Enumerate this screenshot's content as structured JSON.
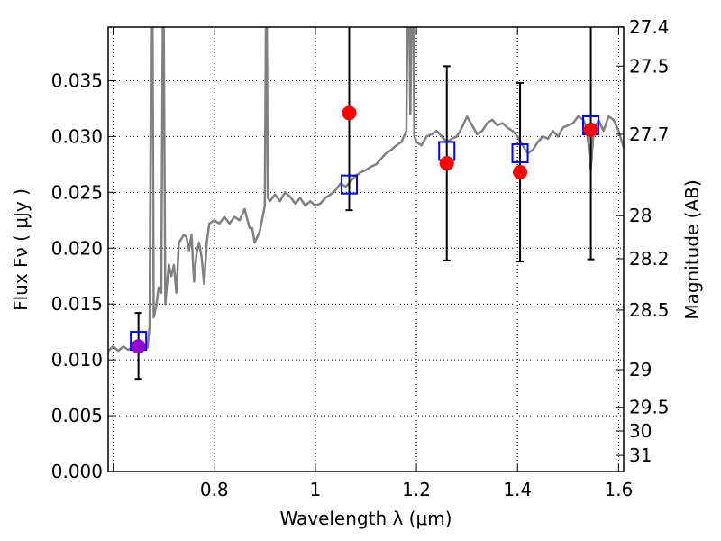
{
  "chart_data": {
    "type": "scatter",
    "xlabel": "Wavelength  λ (μm)",
    "ylabel_left": "Flux  Fν  ( μJy )",
    "ylabel_right": "Magnitude (AB)",
    "xlim": [
      0.59,
      1.61
    ],
    "ylim": [
      0.0,
      0.0398
    ],
    "grid": true,
    "x_ticks": [
      {
        "value": 0.6,
        "label": ""
      },
      {
        "value": 0.8,
        "label": "0.8"
      },
      {
        "value": 1.0,
        "label": "1"
      },
      {
        "value": 1.2,
        "label": "1.2"
      },
      {
        "value": 1.4,
        "label": "1.4"
      },
      {
        "value": 1.6,
        "label": "1.6"
      }
    ],
    "y_ticks": [
      {
        "value": 0.0,
        "label": "0.000"
      },
      {
        "value": 0.005,
        "label": "0.005"
      },
      {
        "value": 0.01,
        "label": "0.010"
      },
      {
        "value": 0.015,
        "label": "0.015"
      },
      {
        "value": 0.02,
        "label": "0.020"
      },
      {
        "value": 0.025,
        "label": "0.025"
      },
      {
        "value": 0.03,
        "label": "0.030"
      },
      {
        "value": 0.035,
        "label": "0.035"
      }
    ],
    "right_ticks": [
      {
        "mag": 27.4,
        "label": "27.4"
      },
      {
        "mag": 27.5,
        "label": "27.5"
      },
      {
        "mag": 27.7,
        "label": "27.7"
      },
      {
        "mag": 28.0,
        "label": "28"
      },
      {
        "mag": 28.2,
        "label": "28.2"
      },
      {
        "mag": 28.5,
        "label": "28.5"
      },
      {
        "mag": 29.0,
        "label": "29"
      },
      {
        "mag": 29.5,
        "label": "29.5"
      },
      {
        "mag": 30.0,
        "label": "30"
      },
      {
        "mag": 31.0,
        "label": "31"
      }
    ],
    "model_spectrum": {
      "color": "#808080",
      "points": [
        [
          0.59,
          0.0108
        ],
        [
          0.6,
          0.0112
        ],
        [
          0.61,
          0.0108
        ],
        [
          0.62,
          0.0112
        ],
        [
          0.63,
          0.0109
        ],
        [
          0.64,
          0.0112
        ],
        [
          0.65,
          0.011
        ],
        [
          0.66,
          0.0112
        ],
        [
          0.668,
          0.0111
        ],
        [
          0.672,
          0.013
        ],
        [
          0.675,
          0.0398
        ],
        [
          0.678,
          0.0398
        ],
        [
          0.68,
          0.0138
        ],
        [
          0.685,
          0.0148
        ],
        [
          0.69,
          0.0165
        ],
        [
          0.695,
          0.016
        ],
        [
          0.698,
          0.0398
        ],
        [
          0.7,
          0.0398
        ],
        [
          0.703,
          0.015
        ],
        [
          0.71,
          0.0185
        ],
        [
          0.715,
          0.0175
        ],
        [
          0.72,
          0.0185
        ],
        [
          0.725,
          0.016
        ],
        [
          0.73,
          0.0205
        ],
        [
          0.74,
          0.0212
        ],
        [
          0.745,
          0.021
        ],
        [
          0.75,
          0.0198
        ],
        [
          0.755,
          0.0212
        ],
        [
          0.76,
          0.017
        ],
        [
          0.765,
          0.0195
        ],
        [
          0.77,
          0.0205
        ],
        [
          0.775,
          0.0192
        ],
        [
          0.78,
          0.0168
        ],
        [
          0.785,
          0.0205
        ],
        [
          0.79,
          0.0222
        ],
        [
          0.8,
          0.0225
        ],
        [
          0.81,
          0.0222
        ],
        [
          0.82,
          0.0228
        ],
        [
          0.83,
          0.0222
        ],
        [
          0.84,
          0.0228
        ],
        [
          0.85,
          0.0225
        ],
        [
          0.86,
          0.0235
        ],
        [
          0.87,
          0.0218
        ],
        [
          0.875,
          0.0218
        ],
        [
          0.88,
          0.0205
        ],
        [
          0.89,
          0.0215
        ],
        [
          0.9,
          0.0238
        ],
        [
          0.902,
          0.0398
        ],
        [
          0.904,
          0.0398
        ],
        [
          0.906,
          0.0245
        ],
        [
          0.91,
          0.0242
        ],
        [
          0.92,
          0.0248
        ],
        [
          0.93,
          0.0242
        ],
        [
          0.94,
          0.025
        ],
        [
          0.95,
          0.0246
        ],
        [
          0.96,
          0.024
        ],
        [
          0.97,
          0.0245
        ],
        [
          0.98,
          0.0238
        ],
        [
          0.99,
          0.0242
        ],
        [
          1.0,
          0.0238
        ],
        [
          1.01,
          0.024
        ],
        [
          1.02,
          0.0245
        ],
        [
          1.03,
          0.0248
        ],
        [
          1.04,
          0.0252
        ],
        [
          1.05,
          0.0258
        ],
        [
          1.06,
          0.0255
        ],
        [
          1.07,
          0.026
        ],
        [
          1.08,
          0.0265
        ],
        [
          1.09,
          0.0268
        ],
        [
          1.1,
          0.027
        ],
        [
          1.11,
          0.0273
        ],
        [
          1.12,
          0.0275
        ],
        [
          1.13,
          0.028
        ],
        [
          1.14,
          0.0285
        ],
        [
          1.15,
          0.0288
        ],
        [
          1.16,
          0.0292
        ],
        [
          1.17,
          0.0295
        ],
        [
          1.18,
          0.0305
        ],
        [
          1.182,
          0.0398
        ],
        [
          1.186,
          0.0398
        ],
        [
          1.188,
          0.032
        ],
        [
          1.19,
          0.0398
        ],
        [
          1.194,
          0.0398
        ],
        [
          1.196,
          0.03
        ],
        [
          1.2,
          0.0295
        ],
        [
          1.21,
          0.0292
        ],
        [
          1.22,
          0.03
        ],
        [
          1.23,
          0.0302
        ],
        [
          1.24,
          0.0305
        ],
        [
          1.25,
          0.03
        ],
        [
          1.26,
          0.0295
        ],
        [
          1.27,
          0.0298
        ],
        [
          1.28,
          0.03
        ],
        [
          1.29,
          0.0308
        ],
        [
          1.3,
          0.0318
        ],
        [
          1.31,
          0.031
        ],
        [
          1.32,
          0.0302
        ],
        [
          1.33,
          0.0305
        ],
        [
          1.34,
          0.0312
        ],
        [
          1.35,
          0.0315
        ],
        [
          1.36,
          0.031
        ],
        [
          1.37,
          0.0312
        ],
        [
          1.38,
          0.0308
        ],
        [
          1.39,
          0.0305
        ],
        [
          1.4,
          0.03
        ],
        [
          1.41,
          0.0292
        ],
        [
          1.42,
          0.0285
        ],
        [
          1.43,
          0.0288
        ],
        [
          1.44,
          0.0295
        ],
        [
          1.45,
          0.03
        ],
        [
          1.46,
          0.0298
        ],
        [
          1.47,
          0.0305
        ],
        [
          1.48,
          0.03
        ],
        [
          1.49,
          0.0308
        ],
        [
          1.5,
          0.031
        ],
        [
          1.51,
          0.0312
        ],
        [
          1.52,
          0.0318
        ],
        [
          1.53,
          0.0315
        ],
        [
          1.535,
          0.031
        ],
        [
          1.54,
          0.0295
        ],
        [
          1.545,
          0.027
        ],
        [
          1.55,
          0.0302
        ],
        [
          1.56,
          0.0315
        ],
        [
          1.57,
          0.0305
        ],
        [
          1.58,
          0.0318
        ],
        [
          1.59,
          0.0315
        ],
        [
          1.6,
          0.0305
        ],
        [
          1.61,
          0.029
        ]
      ]
    },
    "model_photometry": {
      "color": "#0000ff",
      "points": [
        {
          "x": 0.65,
          "y": 0.0117
        },
        {
          "x": 1.067,
          "y": 0.0257
        },
        {
          "x": 1.26,
          "y": 0.0287
        },
        {
          "x": 1.405,
          "y": 0.0285
        },
        {
          "x": 1.545,
          "y": 0.031
        }
      ]
    },
    "observed": {
      "color": "#ff0000",
      "error_color": "#000000",
      "points": [
        {
          "x": 0.65,
          "y": 0.0112,
          "ylo": 0.0083,
          "yhi": 0.0142,
          "color": "#9400d3"
        },
        {
          "x": 1.067,
          "y": 0.0321,
          "ylo": 0.0234,
          "yhi": 0.0398,
          "color": "#ff0000"
        },
        {
          "x": 1.26,
          "y": 0.0276,
          "ylo": 0.0189,
          "yhi": 0.0363,
          "color": "#ff0000"
        },
        {
          "x": 1.405,
          "y": 0.0268,
          "ylo": 0.0188,
          "yhi": 0.0348,
          "color": "#ff0000"
        },
        {
          "x": 1.545,
          "y": 0.0306,
          "ylo": 0.019,
          "yhi": 0.0398,
          "color": "#ff0000"
        }
      ]
    }
  }
}
